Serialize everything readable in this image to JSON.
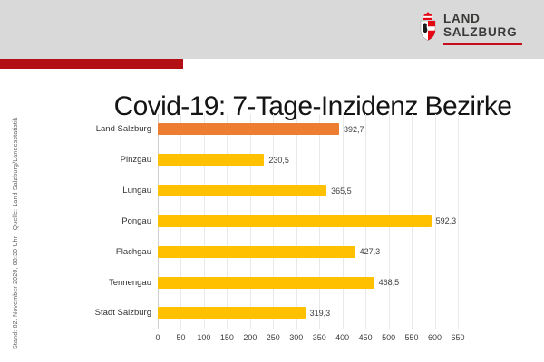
{
  "header": {
    "logo": {
      "line1": "LAND",
      "line2": "SALZBURG"
    },
    "band_color": "#d9d9d9",
    "accent_bar_color": "#b21015",
    "logo_underline_color": "#c50f1f",
    "coat_of_arms_red": "#e30613"
  },
  "title": "Covid-19: 7-Tage-Inzidenz Bezirke",
  "side_caption": "Stand: 02. November 2020, 08:30 Uhr  |  Quelle: Land Salzburg/Landesstatistik",
  "chart_data": {
    "type": "bar",
    "orientation": "horizontal",
    "title": "Covid-19: 7-Tage-Inzidenz Bezirke",
    "categories": [
      "Land Salzburg",
      "Pinzgau",
      "Lungau",
      "Pongau",
      "Flachgau",
      "Tennengau",
      "Stadt Salzburg"
    ],
    "values": [
      392.7,
      230.5,
      365.5,
      592.3,
      427.3,
      468.5,
      319.3
    ],
    "value_labels": [
      "392,7",
      "230,5",
      "365,5",
      "592,3",
      "427,3",
      "468,5",
      "319,3"
    ],
    "bar_colors": [
      "#ed7d31",
      "#ffc000",
      "#ffc000",
      "#ffc000",
      "#ffc000",
      "#ffc000",
      "#ffc000"
    ],
    "highlight_category": "Land Salzburg",
    "xlabel": "",
    "ylabel": "",
    "xlim": [
      0,
      650
    ],
    "x_ticks": [
      0,
      50,
      100,
      150,
      200,
      250,
      300,
      350,
      400,
      450,
      500,
      550,
      600,
      650
    ],
    "grid": true,
    "legend": false
  }
}
